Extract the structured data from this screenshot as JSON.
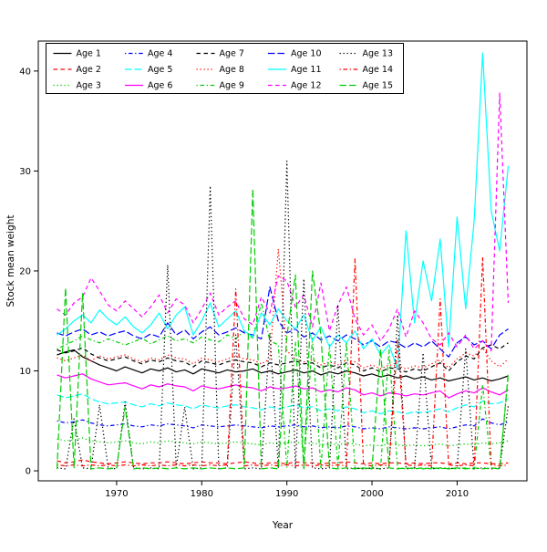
{
  "figure": {
    "background": "#ffffff"
  },
  "chart_data": {
    "type": "line",
    "title": "",
    "xlabel": "Year",
    "ylabel": "Stock mean weight",
    "xlim": [
      1960.8,
      2018.2
    ],
    "ylim": [
      -1.0,
      43.0
    ],
    "xticks": [
      1970,
      1980,
      1990,
      2000,
      2010
    ],
    "yticks": [
      0,
      10,
      20,
      30,
      40
    ],
    "grid": false,
    "legend": {
      "position": "top-left-inside",
      "columns": 5,
      "rows": 3,
      "border": true,
      "fill_order": "column-major"
    },
    "palette": {
      "black": "#000000",
      "red": "#ff0000",
      "green": "#00cd00",
      "blue": "#0000ff",
      "cyan": "#00ffff",
      "magenta": "#ff00ff"
    },
    "x": [
      1963,
      1964,
      1965,
      1966,
      1967,
      1968,
      1969,
      1970,
      1971,
      1972,
      1973,
      1974,
      1975,
      1976,
      1977,
      1978,
      1979,
      1980,
      1981,
      1982,
      1983,
      1984,
      1985,
      1986,
      1987,
      1988,
      1989,
      1990,
      1991,
      1992,
      1993,
      1994,
      1995,
      1996,
      1997,
      1998,
      1999,
      2000,
      2001,
      2002,
      2003,
      2004,
      2005,
      2006,
      2007,
      2008,
      2009,
      2010,
      2011,
      2012,
      2013,
      2014,
      2015,
      2016
    ],
    "series": [
      {
        "name": "Age 1",
        "color": "#000000",
        "linetype": "solid",
        "values": [
          11.6,
          11.9,
          12.1,
          11.4,
          11.0,
          10.6,
          10.3,
          10.0,
          10.4,
          10.1,
          9.8,
          10.2,
          10.0,
          10.3,
          9.9,
          10.1,
          9.7,
          10.2,
          10.0,
          9.8,
          10.1,
          9.9,
          10.0,
          10.2,
          9.8,
          10.0,
          9.7,
          9.9,
          10.1,
          9.8,
          10.0,
          9.6,
          9.9,
          9.7,
          10.0,
          9.8,
          9.5,
          9.7,
          9.4,
          9.6,
          9.3,
          9.5,
          9.2,
          9.4,
          9.1,
          9.3,
          9.0,
          9.2,
          9.4,
          9.1,
          9.3,
          9.0,
          9.2,
          9.5
        ]
      },
      {
        "name": "Age 2",
        "color": "#ff0000",
        "linetype": "dashed",
        "values": [
          1.0,
          0.8,
          0.9,
          1.1,
          0.9,
          0.8,
          0.7,
          0.8,
          0.9,
          0.8,
          0.7,
          0.8,
          0.8,
          0.9,
          0.8,
          0.7,
          0.8,
          0.9,
          0.8,
          0.8,
          0.7,
          0.8,
          0.9,
          0.8,
          0.7,
          0.8,
          0.8,
          0.7,
          0.9,
          0.8,
          0.8,
          0.7,
          0.8,
          0.8,
          0.9,
          0.8,
          0.7,
          0.8,
          0.7,
          0.8,
          0.8,
          0.7,
          0.8,
          0.7,
          0.8,
          0.8,
          0.7,
          0.8,
          0.7,
          0.8,
          0.8,
          0.7,
          0.7,
          0.8
        ]
      },
      {
        "name": "Age 3",
        "color": "#00cd00",
        "linetype": "dotted",
        "values": [
          3.2,
          3.0,
          3.1,
          3.3,
          3.0,
          2.9,
          2.8,
          2.9,
          3.0,
          2.8,
          2.7,
          2.9,
          2.8,
          3.0,
          2.9,
          2.8,
          2.7,
          2.9,
          2.8,
          2.7,
          2.8,
          2.9,
          2.8,
          2.7,
          2.6,
          2.8,
          2.7,
          2.8,
          2.9,
          2.7,
          2.8,
          2.6,
          2.7,
          2.6,
          2.8,
          2.7,
          2.5,
          2.6,
          2.5,
          2.7,
          2.6,
          2.5,
          2.6,
          2.5,
          2.6,
          2.7,
          2.5,
          2.6,
          2.7,
          2.6,
          2.8,
          2.7,
          2.8,
          3.0
        ]
      },
      {
        "name": "Age 4",
        "color": "#0000ff",
        "linetype": "dotdash",
        "values": [
          5.0,
          4.8,
          4.9,
          5.1,
          4.8,
          4.6,
          4.5,
          4.6,
          4.7,
          4.5,
          4.4,
          4.6,
          4.5,
          4.7,
          4.6,
          4.5,
          4.3,
          4.6,
          4.5,
          4.4,
          4.5,
          4.6,
          4.5,
          4.4,
          4.3,
          4.5,
          4.4,
          4.5,
          4.6,
          4.4,
          4.5,
          4.3,
          4.4,
          4.3,
          4.5,
          4.4,
          4.2,
          4.3,
          4.2,
          4.4,
          4.3,
          4.2,
          4.3,
          4.2,
          4.3,
          4.4,
          4.2,
          4.4,
          4.6,
          4.5,
          5.2,
          4.8,
          4.6,
          4.9
        ]
      },
      {
        "name": "Age 5",
        "color": "#00ffff",
        "linetype": "longdash",
        "values": [
          7.6,
          7.3,
          7.5,
          7.7,
          7.2,
          6.9,
          6.7,
          6.8,
          6.9,
          6.6,
          6.4,
          6.7,
          6.5,
          6.8,
          6.6,
          6.5,
          6.2,
          6.6,
          6.4,
          6.3,
          6.5,
          6.6,
          6.4,
          6.3,
          6.1,
          6.4,
          6.2,
          6.4,
          6.6,
          6.3,
          6.4,
          6.0,
          6.2,
          6.0,
          6.4,
          6.2,
          5.8,
          6.0,
          5.7,
          6.0,
          5.9,
          5.7,
          5.9,
          5.8,
          6.0,
          6.2,
          5.9,
          6.3,
          6.6,
          6.4,
          7.0,
          6.7,
          6.8,
          7.2
        ]
      },
      {
        "name": "Age 6",
        "color": "#ff00ff",
        "linetype": "solid",
        "values": [
          9.6,
          9.3,
          9.5,
          9.7,
          9.2,
          8.9,
          8.6,
          8.7,
          8.8,
          8.5,
          8.2,
          8.6,
          8.4,
          8.7,
          8.5,
          8.4,
          8.0,
          8.5,
          8.3,
          8.2,
          8.4,
          8.6,
          8.4,
          8.3,
          8.0,
          8.4,
          8.2,
          8.3,
          8.5,
          8.2,
          8.3,
          7.9,
          8.1,
          7.9,
          8.3,
          8.1,
          7.6,
          7.8,
          7.5,
          7.8,
          7.7,
          7.5,
          7.7,
          7.6,
          7.8,
          8.0,
          7.3,
          7.7,
          8.0,
          7.8,
          8.3,
          7.9,
          7.6,
          8.1
        ]
      },
      {
        "name": "Age 7",
        "color": "#000000",
        "linetype": "dashed",
        "values": [
          12.1,
          11.8,
          12.0,
          12.3,
          11.7,
          11.3,
          11.0,
          11.2,
          11.4,
          11.0,
          10.7,
          11.1,
          10.9,
          11.3,
          11.0,
          10.9,
          10.4,
          11.0,
          10.8,
          10.6,
          10.9,
          11.1,
          10.9,
          10.8,
          10.4,
          10.8,
          10.6,
          10.8,
          11.0,
          10.7,
          10.8,
          10.3,
          10.6,
          10.3,
          10.8,
          10.6,
          10.0,
          10.3,
          9.9,
          10.3,
          10.2,
          9.9,
          10.2,
          10.0,
          10.4,
          10.8,
          10.0,
          10.9,
          11.5,
          11.2,
          12.3,
          12.6,
          12.2,
          12.8
        ]
      },
      {
        "name": "Age 8",
        "color": "#ff0000",
        "linetype": "dotted",
        "values": [
          11.3,
          11.0,
          11.3,
          11.6,
          11.0,
          11.5,
          11.2,
          11.4,
          11.6,
          11.2,
          10.9,
          11.3,
          11.1,
          11.6,
          11.3,
          11.2,
          10.7,
          11.3,
          11.1,
          10.9,
          11.2,
          11.5,
          11.2,
          11.1,
          10.7,
          11.2,
          22.2,
          12.0,
          11.2,
          10.9,
          11.1,
          10.6,
          10.9,
          10.6,
          11.1,
          10.9,
          10.3,
          10.6,
          10.2,
          10.6,
          10.5,
          10.2,
          10.5,
          10.3,
          10.7,
          11.1,
          10.3,
          11.2,
          11.8,
          11.5,
          12.3,
          11.0,
          10.4,
          11.2
        ]
      },
      {
        "name": "Age 9",
        "color": "#00cd00",
        "linetype": "dotdash",
        "values": [
          12.2,
          12.6,
          13.0,
          13.5,
          13.1,
          12.8,
          13.2,
          12.9,
          12.6,
          12.9,
          13.3,
          12.7,
          13.1,
          13.5,
          13.0,
          13.2,
          12.8,
          13.4,
          13.1,
          12.9,
          13.6,
          13.2,
          14.0,
          13.3,
          16.8,
          13.0,
          12.6,
          0.3,
          12.9,
          0.3,
          13.3,
          0.2,
          12.6,
          0.3,
          12.9,
          0.3,
          0.2,
          0.3,
          0.2,
          12.1,
          0.3,
          0.2,
          0.3,
          0.2,
          0.3,
          0.2,
          0.3,
          0.2,
          0.3,
          0.2,
          8.6,
          0.3,
          0.2,
          9.5
        ]
      },
      {
        "name": "Age 10",
        "color": "#0000ff",
        "linetype": "longdash",
        "values": [
          13.8,
          13.5,
          13.9,
          14.2,
          13.6,
          13.9,
          13.5,
          13.8,
          14.0,
          13.5,
          13.2,
          13.7,
          13.4,
          14.8,
          13.6,
          14.1,
          13.2,
          13.9,
          14.4,
          13.6,
          13.9,
          14.3,
          13.8,
          13.6,
          13.2,
          18.4,
          15.0,
          13.8,
          14.2,
          13.4,
          13.8,
          13.1,
          13.5,
          13.0,
          13.6,
          13.2,
          12.6,
          13.0,
          12.4,
          13.0,
          12.8,
          12.3,
          12.8,
          12.4,
          13.0,
          12.2,
          11.4,
          12.8,
          13.4,
          12.6,
          13.0,
          12.2,
          13.6,
          14.2
        ]
      },
      {
        "name": "Age 11",
        "color": "#00ffff",
        "linetype": "solid",
        "values": [
          13.6,
          14.2,
          15.0,
          15.6,
          14.8,
          16.1,
          15.2,
          14.6,
          15.4,
          14.4,
          13.8,
          14.6,
          15.8,
          14.2,
          15.6,
          16.4,
          13.6,
          15.0,
          16.8,
          14.4,
          15.2,
          16.0,
          14.0,
          13.4,
          15.8,
          14.6,
          16.2,
          15.0,
          14.2,
          15.6,
          13.0,
          14.4,
          12.4,
          13.6,
          12.8,
          14.0,
          12.2,
          13.2,
          11.6,
          12.6,
          10.2,
          24.0,
          14.8,
          21.0,
          17.0,
          23.2,
          12.4,
          25.4,
          16.2,
          25.0,
          41.8,
          26.0,
          22.0,
          30.5
        ]
      },
      {
        "name": "Age 12",
        "color": "#ff00ff",
        "linetype": "dashed",
        "values": [
          16.2,
          15.6,
          16.8,
          17.4,
          19.3,
          18.0,
          16.6,
          16.0,
          17.0,
          16.2,
          15.4,
          16.4,
          17.6,
          15.8,
          17.2,
          16.6,
          14.8,
          16.2,
          17.8,
          15.6,
          16.4,
          17.0,
          15.2,
          14.6,
          17.4,
          15.8,
          19.5,
          19.0,
          16.4,
          17.6,
          14.4,
          18.8,
          14.0,
          16.6,
          18.4,
          15.2,
          13.6,
          14.6,
          13.0,
          14.2,
          16.2,
          13.4,
          16.0,
          14.8,
          13.2,
          12.6,
          13.8,
          12.4,
          13.6,
          12.2,
          13.0,
          12.0,
          37.8,
          16.8
        ]
      },
      {
        "name": "Age 13",
        "color": "#000000",
        "linetype": "dotted",
        "values": [
          0.3,
          0.2,
          5.2,
          0.3,
          0.2,
          6.6,
          0.3,
          0.2,
          6.9,
          0.3,
          0.2,
          0.3,
          0.2,
          20.6,
          0.3,
          6.4,
          0.2,
          0.3,
          28.5,
          0.2,
          0.3,
          13.6,
          0.2,
          0.3,
          0.2,
          13.8,
          0.3,
          31.0,
          0.2,
          19.2,
          0.3,
          0.2,
          0.3,
          16.6,
          0.2,
          0.3,
          0.2,
          0.3,
          0.2,
          0.3,
          15.6,
          0.2,
          0.3,
          11.8,
          0.2,
          0.3,
          0.2,
          0.3,
          12.2,
          0.2,
          0.3,
          0.2,
          0.3,
          6.5
        ]
      },
      {
        "name": "Age 14",
        "color": "#ff0000",
        "linetype": "dotdash",
        "values": [
          0.6,
          0.5,
          0.6,
          0.5,
          0.6,
          0.5,
          0.6,
          0.5,
          0.6,
          0.5,
          0.6,
          0.5,
          0.6,
          0.5,
          0.6,
          0.5,
          0.6,
          0.5,
          0.6,
          0.5,
          0.6,
          18.2,
          0.5,
          0.6,
          0.5,
          0.6,
          0.5,
          0.6,
          0.5,
          0.6,
          0.5,
          0.6,
          0.5,
          0.6,
          0.5,
          21.2,
          0.6,
          0.5,
          0.6,
          0.5,
          13.2,
          0.6,
          0.5,
          0.6,
          0.5,
          17.2,
          0.6,
          0.5,
          0.6,
          0.5,
          21.4,
          0.6,
          0.5,
          0.6
        ]
      },
      {
        "name": "Age 15",
        "color": "#00cd00",
        "linetype": "longdash",
        "values": [
          0.2,
          18.3,
          0.3,
          17.8,
          0.2,
          0.3,
          0.2,
          0.3,
          6.4,
          0.2,
          0.3,
          0.2,
          0.3,
          0.2,
          0.3,
          0.2,
          0.3,
          0.2,
          0.3,
          0.2,
          0.3,
          0.2,
          0.3,
          28.2,
          0.2,
          0.3,
          0.2,
          13.5,
          19.6,
          0.2,
          20.0,
          13.6,
          0.3,
          0.2,
          0.3,
          0.2,
          0.3,
          0.2,
          12.2,
          0.3,
          0.2,
          0.3,
          0.2,
          0.3,
          0.2,
          0.3,
          0.2,
          0.3,
          0.2,
          0.3,
          0.2,
          0.3,
          0.2,
          9.8
        ]
      }
    ]
  }
}
